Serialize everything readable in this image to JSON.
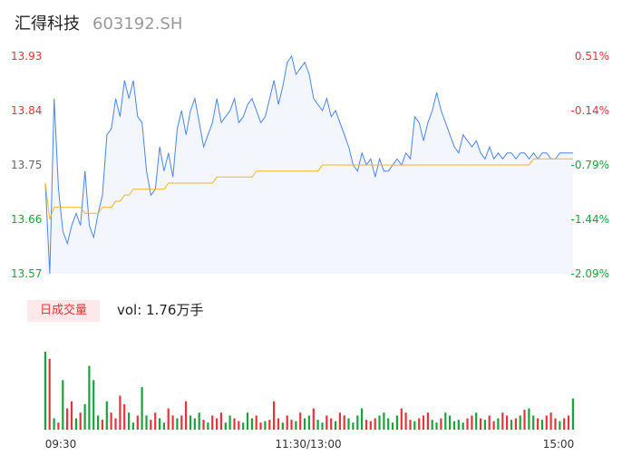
{
  "header": {
    "name": "汇得科技",
    "code": "603192.SH"
  },
  "volume": {
    "tab_label": "日成交量",
    "text": "vol: 1.76万手"
  },
  "colors": {
    "price": "#4a86e8",
    "avg": "#f5b323",
    "up": "#e8333b",
    "down": "#1aa33a",
    "axis": "#666666"
  },
  "chart_data": [
    {
      "type": "line",
      "title": "",
      "y_left_ticks": [
        "13.93",
        "13.84",
        "13.75",
        "13.66",
        "13.57"
      ],
      "y_right_ticks": [
        "0.51%",
        "-0.14%",
        "-0.79%",
        "-1.44%",
        "-2.09%"
      ],
      "x_ticks": [
        "09:30",
        "11:30/13:00",
        "15:00"
      ],
      "ylim": [
        13.57,
        13.93
      ],
      "x": [
        0,
        1,
        2,
        3,
        4,
        5,
        6,
        7,
        8,
        9,
        10,
        11,
        12,
        13,
        14,
        15,
        16,
        17,
        18,
        19,
        20,
        21,
        22,
        23,
        24,
        25,
        26,
        27,
        28,
        29,
        30,
        31,
        32,
        33,
        34,
        35,
        36,
        37,
        38,
        39,
        40,
        41,
        42,
        43,
        44,
        45,
        46,
        47,
        48,
        49,
        50,
        51,
        52,
        53,
        54,
        55,
        56,
        57,
        58,
        59,
        60,
        61,
        62,
        63,
        64,
        65,
        66,
        67,
        68,
        69,
        70,
        71,
        72,
        73,
        74,
        75,
        76,
        77,
        78,
        79,
        80,
        81,
        82,
        83,
        84,
        85,
        86,
        87,
        88,
        89,
        90,
        91,
        92,
        93,
        94,
        95,
        96,
        97,
        98,
        99,
        100,
        101,
        102,
        103,
        104,
        105,
        106,
        107,
        108,
        109,
        110,
        111,
        112,
        113,
        114,
        115,
        116,
        117,
        118,
        119,
        120
      ],
      "series": [
        {
          "values": [
            13.72,
            13.57,
            13.86,
            13.71,
            13.64,
            13.62,
            13.65,
            13.67,
            13.65,
            13.74,
            13.65,
            13.63,
            13.67,
            13.7,
            13.8,
            13.81,
            13.86,
            13.83,
            13.89,
            13.86,
            13.89,
            13.83,
            13.82,
            13.74,
            13.7,
            13.71,
            13.78,
            13.74,
            13.77,
            13.73,
            13.81,
            13.84,
            13.8,
            13.84,
            13.86,
            13.82,
            13.78,
            13.8,
            13.82,
            13.86,
            13.82,
            13.83,
            13.84,
            13.86,
            13.82,
            13.83,
            13.85,
            13.86,
            13.84,
            13.82,
            13.83,
            13.86,
            13.89,
            13.85,
            13.88,
            13.92,
            13.93,
            13.9,
            13.91,
            13.92,
            13.9,
            13.86,
            13.85,
            13.84,
            13.86,
            13.83,
            13.84,
            13.82,
            13.8,
            13.78,
            13.75,
            13.74,
            13.77,
            13.75,
            13.76,
            13.73,
            13.76,
            13.74,
            13.74,
            13.75,
            13.76,
            13.75,
            13.77,
            13.76,
            13.83,
            13.82,
            13.79,
            13.82,
            13.84,
            13.87,
            13.84,
            13.82,
            13.8,
            13.78,
            13.77,
            13.8,
            13.79,
            13.78,
            13.79,
            13.77,
            13.76,
            13.78,
            13.76,
            13.77,
            13.76,
            13.77,
            13.77,
            13.76,
            13.77,
            13.77,
            13.76,
            13.77,
            13.76,
            13.77,
            13.77,
            13.76,
            13.76,
            13.77,
            13.77,
            13.77,
            13.77
          ],
          "color": "#4a86e8"
        },
        {
          "values": [
            13.72,
            13.66,
            13.68,
            13.68,
            13.68,
            13.68,
            13.68,
            13.68,
            13.68,
            13.67,
            13.67,
            13.67,
            13.67,
            13.68,
            13.68,
            13.68,
            13.69,
            13.69,
            13.7,
            13.7,
            13.71,
            13.71,
            13.71,
            13.71,
            13.71,
            13.71,
            13.71,
            13.71,
            13.72,
            13.72,
            13.72,
            13.72,
            13.72,
            13.72,
            13.72,
            13.72,
            13.72,
            13.72,
            13.72,
            13.73,
            13.73,
            13.73,
            13.73,
            13.73,
            13.73,
            13.73,
            13.73,
            13.73,
            13.74,
            13.74,
            13.74,
            13.74,
            13.74,
            13.74,
            13.74,
            13.74,
            13.74,
            13.74,
            13.74,
            13.74,
            13.74,
            13.74,
            13.74,
            13.75,
            13.75,
            13.75,
            13.75,
            13.75,
            13.75,
            13.75,
            13.75,
            13.75,
            13.75,
            13.75,
            13.75,
            13.75,
            13.75,
            13.75,
            13.75,
            13.75,
            13.75,
            13.75,
            13.75,
            13.75,
            13.75,
            13.75,
            13.75,
            13.75,
            13.75,
            13.75,
            13.75,
            13.75,
            13.75,
            13.75,
            13.75,
            13.75,
            13.75,
            13.75,
            13.75,
            13.75,
            13.75,
            13.75,
            13.75,
            13.75,
            13.75,
            13.75,
            13.75,
            13.75,
            13.75,
            13.75,
            13.75,
            13.76,
            13.76,
            13.76,
            13.76,
            13.76,
            13.76,
            13.76,
            13.76,
            13.76,
            13.76
          ],
          "color": "#f5b323"
        }
      ]
    },
    {
      "type": "bar",
      "values": [
        55,
        50,
        8,
        5,
        35,
        15,
        20,
        8,
        12,
        18,
        45,
        35,
        10,
        7,
        20,
        12,
        8,
        24,
        18,
        12,
        5,
        10,
        30,
        10,
        7,
        12,
        8,
        5,
        15,
        10,
        8,
        10,
        20,
        10,
        8,
        12,
        7,
        5,
        10,
        8,
        12,
        5,
        10,
        8,
        6,
        5,
        12,
        8,
        10,
        5,
        6,
        7,
        20,
        8,
        5,
        10,
        7,
        6,
        12,
        8,
        10,
        15,
        7,
        5,
        10,
        8,
        6,
        12,
        10,
        8,
        5,
        10,
        15,
        7,
        6,
        8,
        10,
        12,
        8,
        5,
        10,
        15,
        12,
        7,
        6,
        8,
        10,
        12,
        7,
        5,
        8,
        12,
        10,
        6,
        7,
        5,
        8,
        10,
        12,
        8,
        7,
        10,
        6,
        8,
        12,
        10,
        7,
        8,
        10,
        14,
        15,
        10,
        8,
        7,
        10,
        12,
        8,
        6,
        8,
        10,
        22
      ],
      "colors": [
        "#1aa33a",
        "#e8333b",
        "#1aa33a",
        "#e8333b",
        "#1aa33a",
        "#e8333b",
        "#e8333b",
        "#1aa33a",
        "#e8333b",
        "#1aa33a",
        "#1aa33a",
        "#1aa33a",
        "#1aa33a",
        "#e8333b",
        "#1aa33a",
        "#e8333b",
        "#e8333b",
        "#e8333b",
        "#e8333b",
        "#1aa33a",
        "#1aa33a",
        "#e8333b",
        "#1aa33a",
        "#1aa33a",
        "#e8333b",
        "#e8333b",
        "#1aa33a",
        "#1aa33a",
        "#e8333b",
        "#e8333b",
        "#1aa33a",
        "#e8333b",
        "#e8333b",
        "#1aa33a",
        "#1aa33a",
        "#1aa33a",
        "#e8333b",
        "#1aa33a",
        "#e8333b",
        "#e8333b",
        "#e8333b",
        "#1aa33a",
        "#1aa33a",
        "#e8333b",
        "#e8333b",
        "#1aa33a",
        "#1aa33a",
        "#1aa33a",
        "#e8333b",
        "#e8333b",
        "#1aa33a",
        "#e8333b",
        "#e8333b",
        "#e8333b",
        "#1aa33a",
        "#e8333b",
        "#e8333b",
        "#1aa33a",
        "#e8333b",
        "#1aa33a",
        "#1aa33a",
        "#e8333b",
        "#1aa33a",
        "#1aa33a",
        "#e8333b",
        "#e8333b",
        "#1aa33a",
        "#e8333b",
        "#e8333b",
        "#1aa33a",
        "#1aa33a",
        "#1aa33a",
        "#1aa33a",
        "#e8333b",
        "#e8333b",
        "#e8333b",
        "#1aa33a",
        "#1aa33a",
        "#1aa33a",
        "#1aa33a",
        "#1aa33a",
        "#e8333b",
        "#e8333b",
        "#e8333b",
        "#1aa33a",
        "#e8333b",
        "#e8333b",
        "#e8333b",
        "#1aa33a",
        "#1aa33a",
        "#e8333b",
        "#1aa33a",
        "#1aa33a",
        "#1aa33a",
        "#1aa33a",
        "#1aa33a",
        "#e8333b",
        "#e8333b",
        "#1aa33a",
        "#e8333b",
        "#1aa33a",
        "#e8333b",
        "#e8333b",
        "#1aa33a",
        "#e8333b",
        "#e8333b",
        "#1aa33a",
        "#e8333b",
        "#1aa33a",
        "#e8333b",
        "#1aa33a",
        "#1aa33a",
        "#e8333b",
        "#1aa33a",
        "#e8333b",
        "#e8333b",
        "#e8333b",
        "#1aa33a",
        "#e8333b",
        "#e8333b",
        "#1aa33a"
      ]
    }
  ]
}
